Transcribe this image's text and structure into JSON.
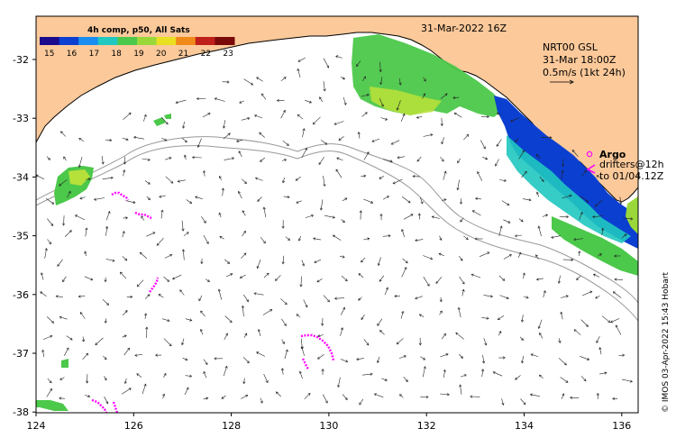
{
  "map": {
    "timestamp": "31-Mar-2022 16Z",
    "colorbar": {
      "title": "4h comp, p50, All Sats",
      "ticks": [
        "15",
        "16",
        "17",
        "18",
        "19",
        "20",
        "21",
        "22",
        "23"
      ],
      "colors": [
        "#1a0a8c",
        "#0b3fd0",
        "#1a8ef0",
        "#20c8c0",
        "#4cc84a",
        "#9ad83a",
        "#e8e020",
        "#f08a1a",
        "#c0201a",
        "#7a0a0a"
      ]
    },
    "current_info": {
      "line1": "NRT00 GSL",
      "line2": "31-Mar 18:00Z",
      "line3": "0.5m/s (1kt 24h)"
    },
    "argo": {
      "label": "Argo",
      "drifters_line1": "drifters@12h",
      "drifters_line2": "to 01/04.12Z"
    },
    "x_ticks": [
      "124",
      "126",
      "128",
      "130",
      "132",
      "134",
      "136"
    ],
    "y_ticks": [
      "-32",
      "-33",
      "-34",
      "-35",
      "-36",
      "-37",
      "-38"
    ],
    "credit": "© IMOS 03-Apr-2022 15:43 Hobart",
    "colors": {
      "land": "#fbc99a",
      "coast": "#000000",
      "isobath": "#999999",
      "drifter": "#ff00ff"
    }
  }
}
